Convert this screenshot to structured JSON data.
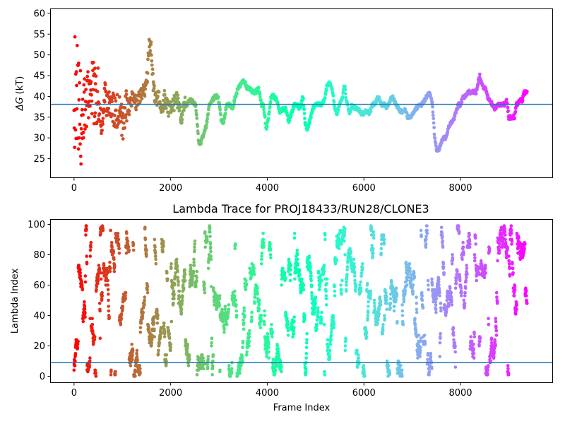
{
  "chart_data": [
    {
      "type": "scatter",
      "title": "",
      "xlabel": "",
      "ylabel": "ΔG (kT)",
      "ylabel_symbol": "ΔG",
      "ylabel_unit": "(kT)",
      "xlim": [
        -480,
        9900
      ],
      "ylim": [
        20.5,
        61.0
      ],
      "x_ticks": [
        0,
        2000,
        4000,
        6000,
        8000
      ],
      "x_tick_labels": [
        "0",
        "2000",
        "4000",
        "6000",
        "8000"
      ],
      "y_ticks": [
        25,
        30,
        35,
        40,
        45,
        50,
        55,
        60
      ],
      "y_tick_labels": [
        "25",
        "30",
        "35",
        "40",
        "45",
        "50",
        "55",
        "60"
      ],
      "hline": {
        "y": 38.1,
        "color": "#1f77b4"
      },
      "colormap": "rainbow (red at frame 0 to violet at final frame)",
      "x_range": [
        0,
        9380
      ],
      "trace_anchors": [
        [
          0,
          40
        ],
        [
          60,
          42
        ],
        [
          120,
          38
        ],
        [
          180,
          37
        ],
        [
          240,
          40
        ],
        [
          300,
          40
        ],
        [
          360,
          43
        ],
        [
          420,
          41
        ],
        [
          500,
          39
        ],
        [
          560,
          34
        ],
        [
          640,
          40
        ],
        [
          720,
          38
        ],
        [
          800,
          37
        ],
        [
          860,
          36
        ],
        [
          940,
          37
        ],
        [
          1020,
          33
        ],
        [
          1080,
          38
        ],
        [
          1140,
          37
        ],
        [
          1200,
          40
        ],
        [
          1250,
          39
        ],
        [
          1300,
          38
        ],
        [
          1350,
          40
        ],
        [
          1400,
          41
        ],
        [
          1460,
          41
        ],
        [
          1520,
          45
        ],
        [
          1550,
          52
        ],
        [
          1600,
          52
        ],
        [
          1640,
          42
        ],
        [
          1700,
          39
        ],
        [
          1760,
          40
        ],
        [
          1820,
          37
        ],
        [
          1880,
          40
        ],
        [
          1950,
          37
        ],
        [
          2000,
          37
        ],
        [
          2060,
          38
        ],
        [
          2120,
          40
        ],
        [
          2200,
          36
        ],
        [
          2230,
          34
        ],
        [
          2280,
          38
        ],
        [
          2330,
          38
        ],
        [
          2380,
          39
        ],
        [
          2440,
          39
        ],
        [
          2520,
          38
        ],
        [
          2580,
          29
        ],
        [
          2620,
          28.5
        ],
        [
          2680,
          31
        ],
        [
          2740,
          33
        ],
        [
          2800,
          38
        ],
        [
          2860,
          39
        ],
        [
          2920,
          40
        ],
        [
          2980,
          40
        ],
        [
          3020,
          37
        ],
        [
          3050,
          34
        ],
        [
          3100,
          34
        ],
        [
          3160,
          38
        ],
        [
          3220,
          38
        ],
        [
          3280,
          37
        ],
        [
          3340,
          40
        ],
        [
          3400,
          42
        ],
        [
          3460,
          43
        ],
        [
          3520,
          44
        ],
        [
          3580,
          42
        ],
        [
          3640,
          42
        ],
        [
          3700,
          41
        ],
        [
          3760,
          41
        ],
        [
          3820,
          42
        ],
        [
          3880,
          38
        ],
        [
          3920,
          38
        ],
        [
          3980,
          32
        ],
        [
          4040,
          36
        ],
        [
          4080,
          40
        ],
        [
          4140,
          40
        ],
        [
          4200,
          39
        ],
        [
          4260,
          36
        ],
        [
          4320,
          37
        ],
        [
          4380,
          37
        ],
        [
          4440,
          34
        ],
        [
          4500,
          36
        ],
        [
          4560,
          38
        ],
        [
          4620,
          38
        ],
        [
          4680,
          37
        ],
        [
          4740,
          40
        ],
        [
          4780,
          34
        ],
        [
          4820,
          32
        ],
        [
          4880,
          34
        ],
        [
          4940,
          37
        ],
        [
          4990,
          38
        ],
        [
          5060,
          38
        ],
        [
          5120,
          38
        ],
        [
          5180,
          39
        ],
        [
          5240,
          43
        ],
        [
          5300,
          43
        ],
        [
          5360,
          41
        ],
        [
          5400,
          37
        ],
        [
          5440,
          36
        ],
        [
          5500,
          38
        ],
        [
          5560,
          40
        ],
        [
          5600,
          43
        ],
        [
          5640,
          39
        ],
        [
          5700,
          36
        ],
        [
          5760,
          38
        ],
        [
          5820,
          37
        ],
        [
          5880,
          37
        ],
        [
          5940,
          36
        ],
        [
          6000,
          36
        ],
        [
          6060,
          36.5
        ],
        [
          6120,
          36
        ],
        [
          6180,
          38
        ],
        [
          6240,
          38.5
        ],
        [
          6300,
          40
        ],
        [
          6360,
          38
        ],
        [
          6420,
          38
        ],
        [
          6480,
          37
        ],
        [
          6540,
          39
        ],
        [
          6600,
          40
        ],
        [
          6660,
          38
        ],
        [
          6720,
          37
        ],
        [
          6800,
          36
        ],
        [
          6860,
          37
        ],
        [
          6900,
          35
        ],
        [
          6960,
          35
        ],
        [
          7020,
          36
        ],
        [
          7080,
          37
        ],
        [
          7140,
          38
        ],
        [
          7200,
          38
        ],
        [
          7260,
          39
        ],
        [
          7300,
          40
        ],
        [
          7340,
          41
        ],
        [
          7380,
          40
        ],
        [
          7420,
          38
        ],
        [
          7460,
          31
        ],
        [
          7500,
          27
        ],
        [
          7540,
          27
        ],
        [
          7580,
          28
        ],
        [
          7640,
          30
        ],
        [
          7700,
          30
        ],
        [
          7760,
          33
        ],
        [
          7820,
          34
        ],
        [
          7880,
          35
        ],
        [
          7920,
          37
        ],
        [
          7960,
          38
        ],
        [
          8000,
          38
        ],
        [
          8060,
          40
        ],
        [
          8100,
          40
        ],
        [
          8160,
          41
        ],
        [
          8200,
          41
        ],
        [
          8260,
          41
        ],
        [
          8320,
          41
        ],
        [
          8360,
          43
        ],
        [
          8400,
          45
        ],
        [
          8440,
          43
        ],
        [
          8480,
          42
        ],
        [
          8520,
          42
        ],
        [
          8560,
          40
        ],
        [
          8600,
          39
        ],
        [
          8660,
          38
        ],
        [
          8720,
          37
        ],
        [
          8780,
          38
        ],
        [
          8840,
          38
        ],
        [
          8900,
          38
        ],
        [
          8960,
          39
        ],
        [
          9000,
          35
        ],
        [
          9060,
          35
        ],
        [
          9120,
          35
        ],
        [
          9160,
          38
        ],
        [
          9220,
          39
        ],
        [
          9280,
          39
        ],
        [
          9320,
          41
        ],
        [
          9380,
          41
        ]
      ]
    },
    {
      "type": "scatter",
      "title": "Lambda Trace for PROJ18433/RUN28/CLONE3",
      "xlabel": "Frame Index",
      "ylabel": "Lambda Index",
      "xlim": [
        -480,
        9900
      ],
      "ylim": [
        -4,
        103
      ],
      "x_ticks": [
        0,
        2000,
        4000,
        6000,
        8000
      ],
      "x_tick_labels": [
        "0",
        "2000",
        "4000",
        "6000",
        "8000"
      ],
      "y_ticks": [
        0,
        20,
        40,
        60,
        80,
        100
      ],
      "y_tick_labels": [
        "0",
        "20",
        "40",
        "60",
        "80",
        "100"
      ],
      "hline": {
        "y": 9,
        "color": "#1f77b4"
      },
      "colormap": "rainbow (red at frame 0 to violet at final frame)",
      "x_range": [
        0,
        9380
      ],
      "value_range": [
        0,
        99
      ],
      "point_count": 9380
    }
  ]
}
